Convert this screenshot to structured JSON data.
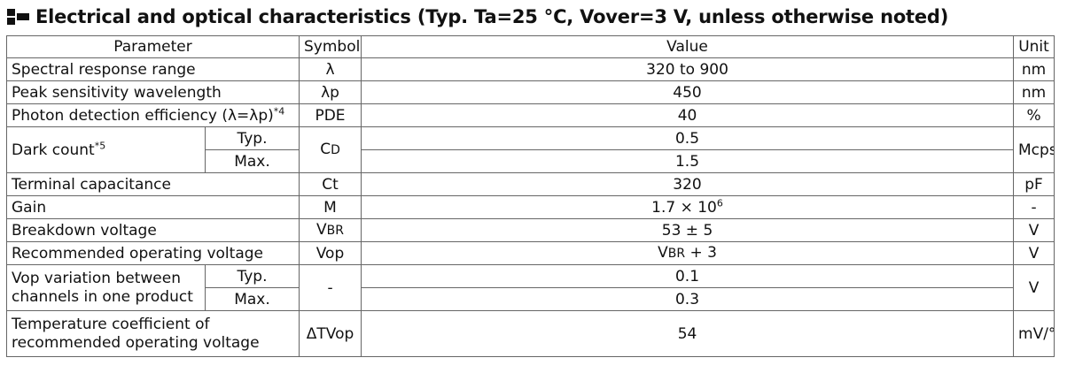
{
  "heading": "Electrical and optical characteristics (Typ. Ta=25 °C, Vover=3 V, unless otherwise noted)",
  "columns": {
    "parameter": "Parameter",
    "symbol": "Symbol",
    "value": "Value",
    "unit": "Unit"
  },
  "rows": {
    "spectral": {
      "parameter": "Spectral response range",
      "symbol": "λ",
      "value": "320 to 900",
      "unit": "nm"
    },
    "peak": {
      "parameter": "Peak sensitivity wavelength",
      "symbol": "λp",
      "value": "450",
      "unit": "nm"
    },
    "pde": {
      "parameter": "Photon detection efficiency (λ=λp)",
      "note": "*4",
      "symbol": "PDE",
      "value": "40",
      "unit": "%"
    },
    "dark": {
      "parameter": "Dark count",
      "note": "*5",
      "typ_label": "Typ.",
      "max_label": "Max.",
      "symbol_main": "C",
      "symbol_sub": "D",
      "typ_value": "0.5",
      "max_value": "1.5",
      "unit": "Mcps"
    },
    "capacitance": {
      "parameter": "Terminal capacitance",
      "symbol": "Ct",
      "value": "320",
      "unit": "pF"
    },
    "gain": {
      "parameter": "Gain",
      "symbol": "M",
      "value_base": "1.7 × 10",
      "value_exp": "6",
      "unit": "-"
    },
    "breakdown": {
      "parameter": "Breakdown voltage",
      "symbol_main": "V",
      "symbol_sub": "BR",
      "value": "53 ± 5",
      "unit": "V"
    },
    "recommended": {
      "parameter": "Recommended operating voltage",
      "symbol": "Vop",
      "value_main": "V",
      "value_sub": "BR",
      "value_rest": " + 3",
      "unit": "V"
    },
    "variation": {
      "parameter": "Vop variation between channels in one product",
      "typ_label": "Typ.",
      "max_label": "Max.",
      "symbol": "-",
      "typ_value": "0.1",
      "max_value": "0.3",
      "unit": "V"
    },
    "tempcoef": {
      "parameter": "Temperature coefficient of recommended operating voltage",
      "symbol": "ΔTVop",
      "value": "54",
      "unit": "mV/°C"
    }
  }
}
